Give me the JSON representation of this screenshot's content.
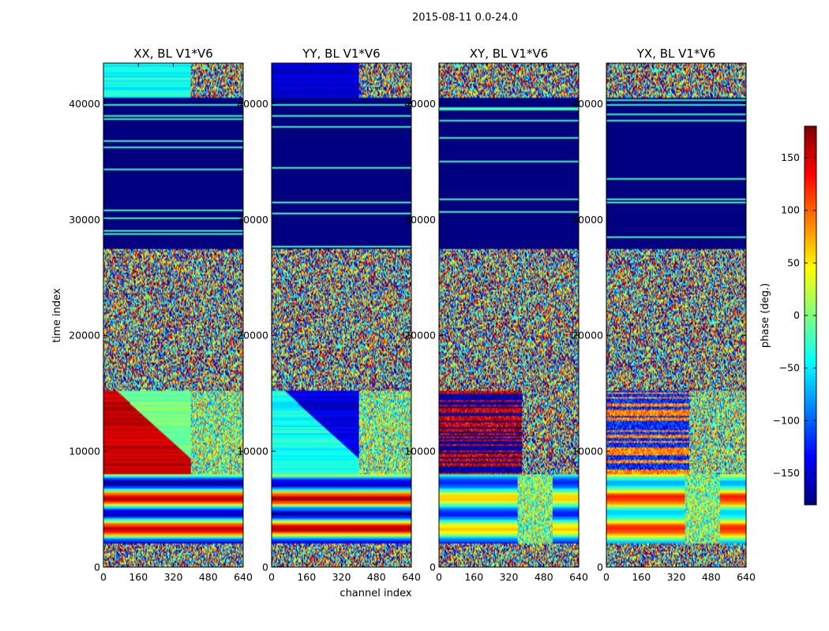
{
  "chart_data": {
    "type": "heatmap",
    "suptitle": "2015-08-11 0.0-24.0",
    "xlabel": "channel index",
    "ylabel": "time index",
    "xlim": [
      0,
      640
    ],
    "ylim": [
      0,
      43500
    ],
    "xticks": [
      0,
      160,
      320,
      480,
      640
    ],
    "yticks": [
      0,
      10000,
      20000,
      30000,
      40000
    ],
    "panels": [
      {
        "title": "XX, BL V1*V6",
        "pol": "XX"
      },
      {
        "title": "YY, BL V1*V6",
        "pol": "YY"
      },
      {
        "title": "XY, BL V1*V6",
        "pol": "XY"
      },
      {
        "title": "YX, BL V1*V6",
        "pol": "YX"
      }
    ],
    "colorbar": {
      "label": "phase (deg.)",
      "range": [
        -180,
        180
      ],
      "ticks": [
        -150,
        -100,
        -50,
        0,
        50,
        100,
        150
      ],
      "colormap": "jet"
    },
    "time_bands": [
      {
        "from": 0,
        "to": 2000,
        "kind": "noise"
      },
      {
        "from": 2000,
        "to": 8000,
        "kind": "coherent-horizontal"
      },
      {
        "from": 8000,
        "to": 15200,
        "kind": "coherent-drift"
      },
      {
        "from": 15200,
        "to": 27500,
        "kind": "noise"
      },
      {
        "from": 27500,
        "to": 40500,
        "kind": "flagged-constant"
      },
      {
        "from": 40500,
        "to": 43500,
        "kind": "partial-coherent"
      }
    ]
  }
}
